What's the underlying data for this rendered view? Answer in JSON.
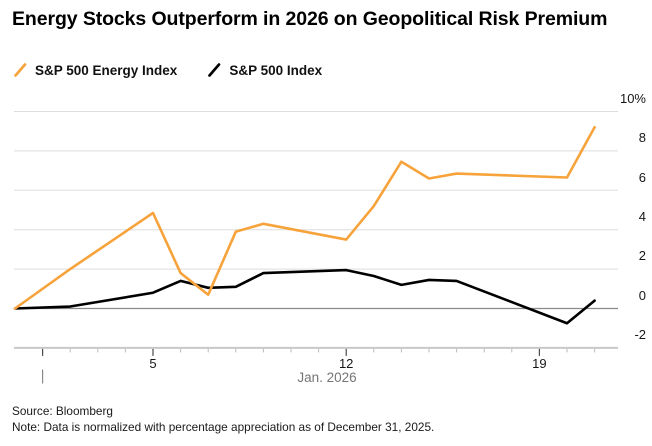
{
  "title": "Energy Stocks Outperform in 2026 on Geopolitical Risk Premium",
  "legend": [
    {
      "label": "S&P 500 Energy Index",
      "color": "#F7A33C"
    },
    {
      "label": "S&P 500 Index",
      "color": "#000000"
    }
  ],
  "chart_data": {
    "type": "line",
    "title": "Energy Stocks Outperform in 2026 on Geopolitical Risk Premium",
    "x": [
      "Dec 31",
      "Jan 2",
      "Jan 5",
      "Jan 6",
      "Jan 7",
      "Jan 8",
      "Jan 9",
      "Jan 12",
      "Jan 13",
      "Jan 14",
      "Jan 15",
      "Jan 16",
      "Jan 20",
      "Jan 21"
    ],
    "day_offsets": [
      0,
      2,
      5,
      6,
      7,
      8,
      9,
      12,
      13,
      14,
      15,
      16,
      20,
      21
    ],
    "series": [
      {
        "name": "S&P 500 Energy Index",
        "color": "#F7A33C",
        "values": [
          0,
          2.0,
          4.85,
          1.8,
          0.7,
          3.9,
          4.3,
          3.5,
          5.2,
          7.45,
          6.6,
          6.85,
          6.65,
          9.2
        ]
      },
      {
        "name": "S&P 500 Index",
        "color": "#000000",
        "values": [
          0,
          0.1,
          0.8,
          1.4,
          1.05,
          1.1,
          1.8,
          1.95,
          1.65,
          1.2,
          1.45,
          1.4,
          -0.75,
          0.4
        ]
      }
    ],
    "ylabel": "%",
    "ylim": [
      -2,
      10
    ],
    "grid": true,
    "legend_position": "top",
    "y_ticks": [
      {
        "v": 10,
        "label": "10%"
      },
      {
        "v": 8,
        "label": "8"
      },
      {
        "v": 6,
        "label": "6"
      },
      {
        "v": 4,
        "label": "4"
      },
      {
        "v": 2,
        "label": "2"
      },
      {
        "v": 0,
        "label": "0"
      },
      {
        "v": -2,
        "label": "-2"
      }
    ],
    "x_ticks_major": [
      {
        "day": 5,
        "label": "5"
      },
      {
        "day": 12,
        "label": "12"
      },
      {
        "day": 19,
        "label": "19"
      }
    ],
    "x_axis_label": "Jan. 2026"
  },
  "colors": {
    "grid": "#DEDEDE",
    "zero_line": "#8A8A8A",
    "axis_line": "#C8C8C8",
    "minor_tick": "#B9B9B9",
    "major_tick": "#4A4A4A",
    "muted_text": "#757575"
  },
  "footer": {
    "source": "Source: Bloomberg",
    "note": "Note: Data is normalized with percentage appreciation as of December 31, 2025."
  }
}
